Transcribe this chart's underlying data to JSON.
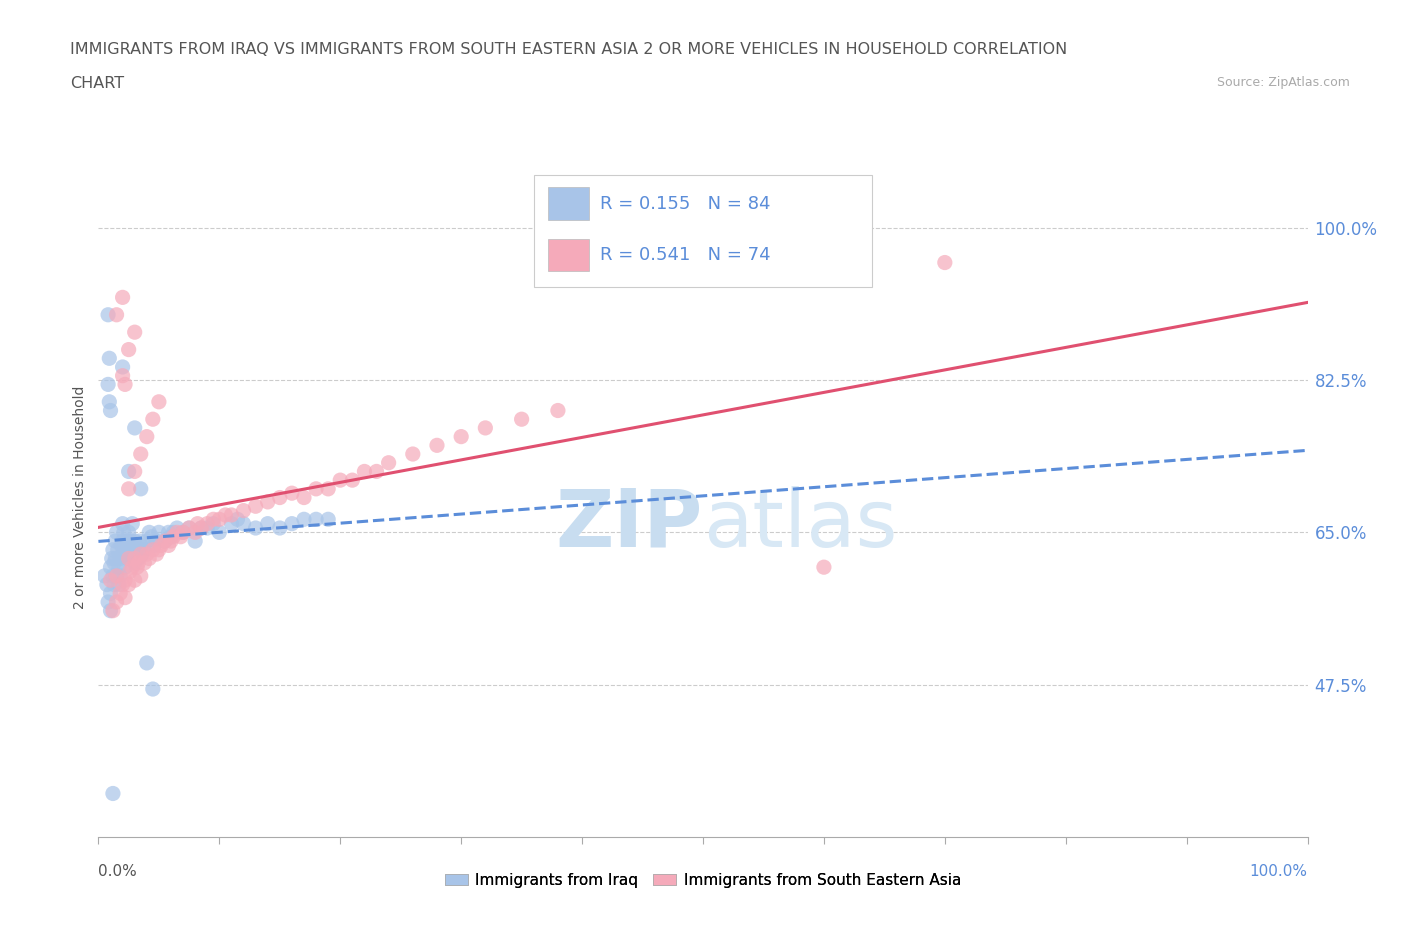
{
  "title_line1": "IMMIGRANTS FROM IRAQ VS IMMIGRANTS FROM SOUTH EASTERN ASIA 2 OR MORE VEHICLES IN HOUSEHOLD CORRELATION",
  "title_line2": "CHART",
  "source_text": "Source: ZipAtlas.com",
  "ylabel": "2 or more Vehicles in Household",
  "xticklabels_ends": [
    "0.0%",
    "100.0%"
  ],
  "yticklabels": [
    "47.5%",
    "65.0%",
    "82.5%",
    "100.0%"
  ],
  "ytick_positions": [
    0.475,
    0.65,
    0.825,
    1.0
  ],
  "xlim": [
    0.0,
    1.0
  ],
  "ylim": [
    0.3,
    1.08
  ],
  "legend_label1": "Immigrants from Iraq",
  "legend_label2": "Immigrants from South Eastern Asia",
  "R1": 0.155,
  "N1": 84,
  "R2": 0.541,
  "N2": 74,
  "color_iraq": "#a8c4e8",
  "color_sea": "#f5aaba",
  "color_iraq_line": "#5b8dd9",
  "color_sea_line": "#e05070",
  "watermark_color": "#daeaf8",
  "background_color": "#ffffff",
  "iraq_x": [
    0.005,
    0.007,
    0.008,
    0.01,
    0.01,
    0.01,
    0.011,
    0.012,
    0.012,
    0.013,
    0.013,
    0.014,
    0.014,
    0.015,
    0.015,
    0.016,
    0.017,
    0.017,
    0.018,
    0.018,
    0.019,
    0.02,
    0.02,
    0.02,
    0.021,
    0.022,
    0.022,
    0.023,
    0.024,
    0.025,
    0.025,
    0.026,
    0.027,
    0.028,
    0.028,
    0.029,
    0.03,
    0.03,
    0.032,
    0.033,
    0.034,
    0.035,
    0.036,
    0.038,
    0.04,
    0.042,
    0.044,
    0.046,
    0.048,
    0.05,
    0.055,
    0.058,
    0.06,
    0.062,
    0.065,
    0.07,
    0.075,
    0.08,
    0.085,
    0.09,
    0.095,
    0.1,
    0.11,
    0.115,
    0.12,
    0.13,
    0.14,
    0.15,
    0.16,
    0.17,
    0.18,
    0.19,
    0.02,
    0.025,
    0.03,
    0.035,
    0.04,
    0.045,
    0.008,
    0.009,
    0.008,
    0.009,
    0.01,
    0.012
  ],
  "iraq_y": [
    0.6,
    0.59,
    0.57,
    0.61,
    0.58,
    0.56,
    0.62,
    0.63,
    0.6,
    0.59,
    0.615,
    0.64,
    0.62,
    0.6,
    0.65,
    0.63,
    0.61,
    0.59,
    0.62,
    0.6,
    0.635,
    0.64,
    0.66,
    0.625,
    0.65,
    0.63,
    0.61,
    0.625,
    0.64,
    0.62,
    0.65,
    0.635,
    0.64,
    0.625,
    0.66,
    0.635,
    0.64,
    0.615,
    0.63,
    0.62,
    0.64,
    0.635,
    0.625,
    0.63,
    0.64,
    0.65,
    0.645,
    0.635,
    0.64,
    0.65,
    0.64,
    0.65,
    0.645,
    0.65,
    0.655,
    0.65,
    0.655,
    0.64,
    0.655,
    0.655,
    0.66,
    0.65,
    0.66,
    0.665,
    0.66,
    0.655,
    0.66,
    0.655,
    0.66,
    0.665,
    0.665,
    0.665,
    0.84,
    0.72,
    0.77,
    0.7,
    0.5,
    0.47,
    0.9,
    0.85,
    0.82,
    0.8,
    0.79,
    0.35
  ],
  "sea_x": [
    0.01,
    0.012,
    0.015,
    0.015,
    0.018,
    0.02,
    0.022,
    0.022,
    0.025,
    0.025,
    0.026,
    0.028,
    0.03,
    0.03,
    0.032,
    0.033,
    0.035,
    0.035,
    0.038,
    0.04,
    0.042,
    0.045,
    0.048,
    0.05,
    0.052,
    0.055,
    0.058,
    0.06,
    0.062,
    0.065,
    0.068,
    0.07,
    0.075,
    0.08,
    0.082,
    0.085,
    0.09,
    0.095,
    0.1,
    0.105,
    0.11,
    0.12,
    0.13,
    0.14,
    0.15,
    0.16,
    0.17,
    0.18,
    0.19,
    0.2,
    0.21,
    0.22,
    0.23,
    0.24,
    0.26,
    0.28,
    0.3,
    0.32,
    0.35,
    0.38,
    0.6,
    0.7,
    0.025,
    0.03,
    0.035,
    0.04,
    0.045,
    0.05,
    0.02,
    0.022,
    0.025,
    0.03,
    0.015,
    0.02
  ],
  "sea_y": [
    0.595,
    0.56,
    0.6,
    0.57,
    0.58,
    0.59,
    0.595,
    0.575,
    0.59,
    0.62,
    0.605,
    0.61,
    0.62,
    0.595,
    0.61,
    0.615,
    0.625,
    0.6,
    0.615,
    0.625,
    0.62,
    0.63,
    0.625,
    0.63,
    0.635,
    0.64,
    0.635,
    0.64,
    0.645,
    0.65,
    0.645,
    0.65,
    0.655,
    0.65,
    0.66,
    0.655,
    0.66,
    0.665,
    0.665,
    0.67,
    0.67,
    0.675,
    0.68,
    0.685,
    0.69,
    0.695,
    0.69,
    0.7,
    0.7,
    0.71,
    0.71,
    0.72,
    0.72,
    0.73,
    0.74,
    0.75,
    0.76,
    0.77,
    0.78,
    0.79,
    0.61,
    0.96,
    0.7,
    0.72,
    0.74,
    0.76,
    0.78,
    0.8,
    0.83,
    0.82,
    0.86,
    0.88,
    0.9,
    0.92
  ]
}
